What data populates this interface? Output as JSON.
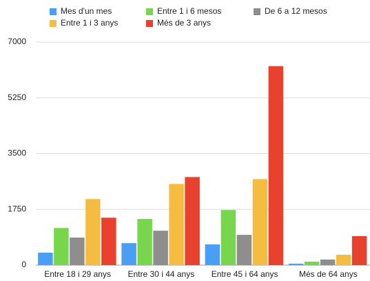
{
  "chart_data": {
    "type": "bar",
    "categories": [
      "Entre 18 i 29 anys",
      "Entre 30 i 44 anys",
      "Entre 45 i 64 anys",
      "Més de 64 anys"
    ],
    "series": [
      {
        "name": "Mes d'un mes",
        "color": "#4a9ff5",
        "values": [
          390,
          690,
          650,
          45
        ]
      },
      {
        "name": "Entre 1 i 6 mesos",
        "color": "#77d64c",
        "values": [
          1165,
          1450,
          1730,
          110
        ]
      },
      {
        "name": "De 6 a 12 mesos",
        "color": "#8e8e8e",
        "values": [
          865,
          1080,
          950,
          175
        ]
      },
      {
        "name": "Entre 1 i 3 anys",
        "color": "#f4bd42",
        "values": [
          2075,
          2550,
          2700,
          325
        ]
      },
      {
        "name": "Més de 3 anys",
        "color": "#e8412e",
        "values": [
          1490,
          2765,
          6245,
          910
        ]
      }
    ],
    "ylim": [
      0,
      7000
    ],
    "yticks": [
      0,
      1750,
      3500,
      5250,
      7000
    ],
    "grid": true,
    "legend": "top"
  }
}
